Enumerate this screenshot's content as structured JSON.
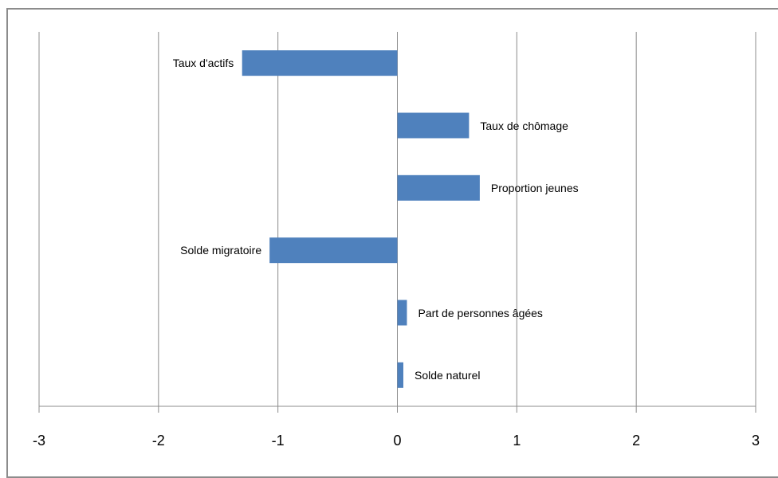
{
  "chart_data": {
    "type": "bar",
    "orientation": "horizontal",
    "categories": [
      "Taux d'actifs",
      "Taux de chômage",
      "Proportion jeunes",
      "Solde migratoire",
      "Part de personnes âgées",
      "Solde naturel"
    ],
    "values": [
      -1.3,
      0.6,
      0.69,
      -1.07,
      0.08,
      0.05
    ],
    "color": "#4f81bd",
    "xlim": [
      -3,
      3
    ],
    "xticks": [
      -3,
      -2,
      -1,
      0,
      1,
      2,
      3
    ],
    "grid": true
  }
}
